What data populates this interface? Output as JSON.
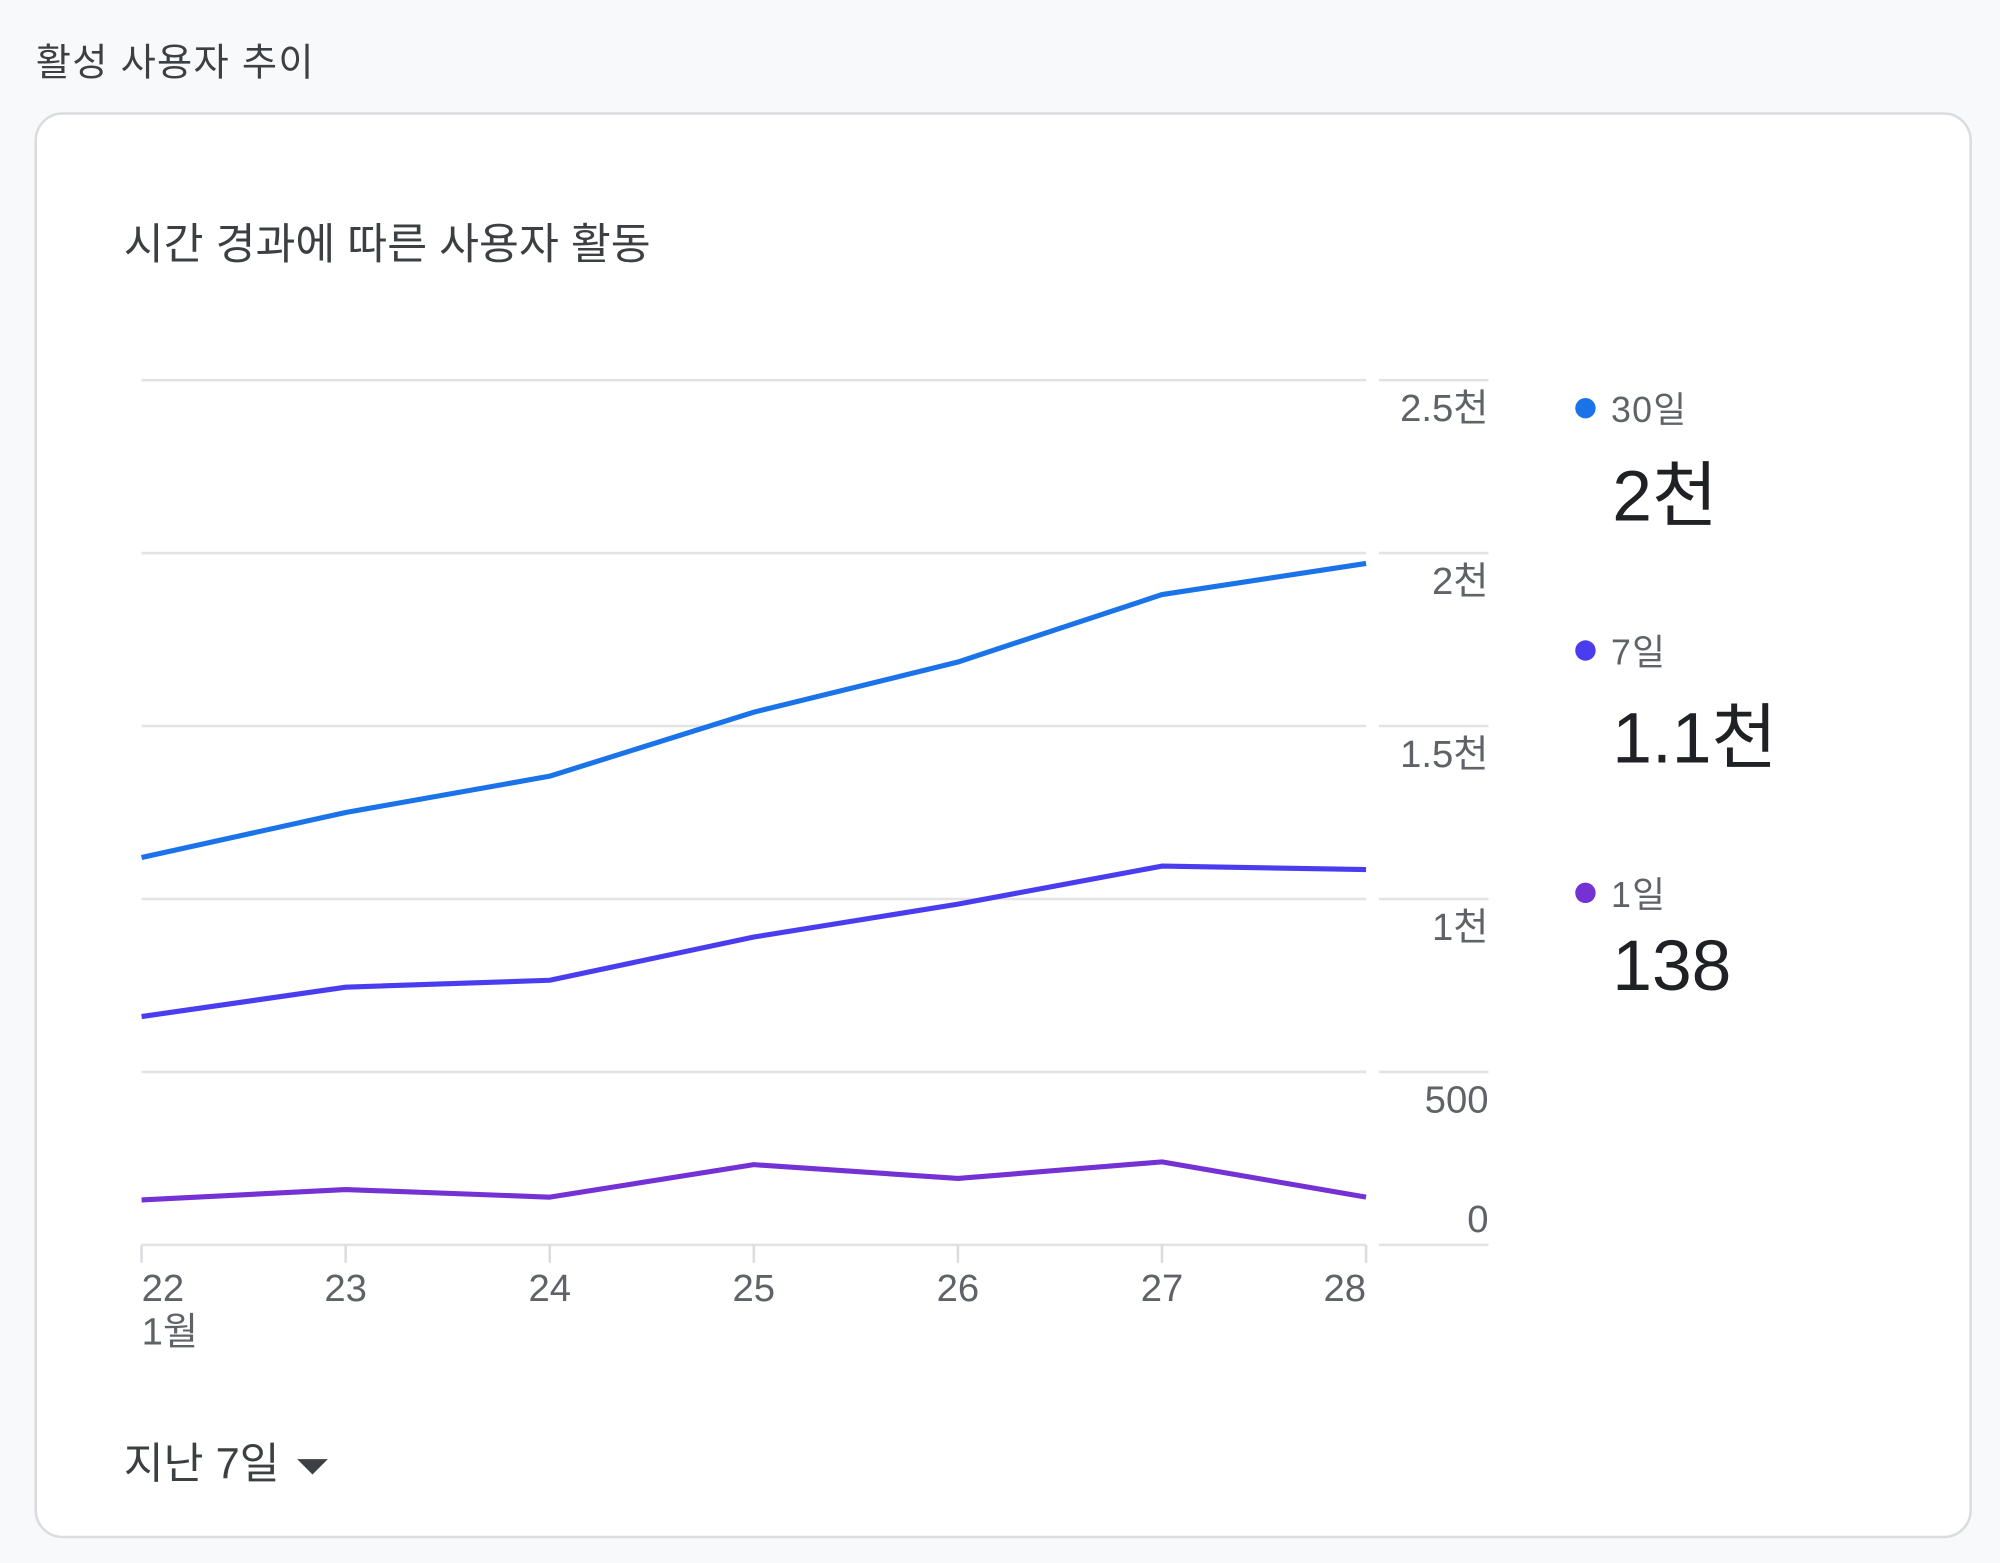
{
  "section_title": "활성 사용자 추이",
  "card": {
    "title": "시간 경과에 따른 사용자 활동",
    "range_selector": "지난 7일",
    "range_icon": "caret-down-icon"
  },
  "legend": [
    {
      "label": "30일",
      "value": "2천",
      "color": "#1a73e8"
    },
    {
      "label": "7일",
      "value": "1.1천",
      "color": "#4a3df0"
    },
    {
      "label": "1일",
      "value": "138",
      "color": "#7431d4"
    }
  ],
  "chart_data": {
    "type": "line",
    "title": "시간 경과에 따른 사용자 활동",
    "x": [
      "22",
      "23",
      "24",
      "25",
      "26",
      "27",
      "28"
    ],
    "x_tick_labels": [
      "22",
      "23",
      "24",
      "25",
      "26",
      "27",
      "28"
    ],
    "x_sublabel": "1월",
    "y_ticks": [
      0,
      500,
      1000,
      1500,
      2000,
      2500
    ],
    "y_tick_labels": [
      "0",
      "500",
      "1천",
      "1.5천",
      "2천",
      "2.5천"
    ],
    "ylim": [
      0,
      2500
    ],
    "y_axis_side": "right",
    "grid": true,
    "legend_placement": "right",
    "series": [
      {
        "name": "30일",
        "color": "#1a73e8",
        "values": [
          1120,
          1250,
          1355,
          1540,
          1685,
          1880,
          1970
        ]
      },
      {
        "name": "7일",
        "color": "#4a3df0",
        "values": [
          660,
          745,
          765,
          890,
          985,
          1095,
          1085
        ]
      },
      {
        "name": "1일",
        "color": "#7431d4",
        "values": [
          130,
          160,
          138,
          232,
          192,
          240,
          138
        ]
      }
    ]
  }
}
